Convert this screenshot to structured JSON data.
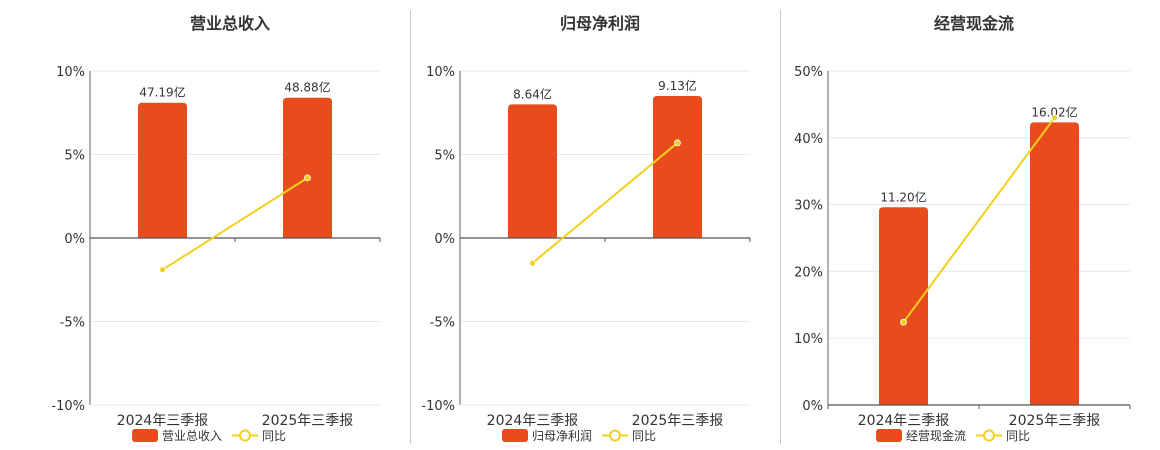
{
  "chart_data": [
    {
      "type": "bar",
      "title": "营业总收入",
      "categories": [
        "2024年三季报",
        "2025年三季报"
      ],
      "series": [
        {
          "name": "营业总收入",
          "type": "bar",
          "values": [
            8.1,
            8.4
          ],
          "labels": [
            "47.19亿",
            "48.88亿"
          ],
          "color": "#e84c1d"
        },
        {
          "name": "同比",
          "type": "line",
          "values": [
            -1.9,
            3.6
          ],
          "color": "#f2d01d"
        }
      ],
      "ylim": [
        -10,
        10
      ],
      "yticks": [
        "10%",
        "5%",
        "0%",
        "-5%",
        "-10%"
      ],
      "ytick_values": [
        10,
        5,
        0,
        -5,
        -10
      ],
      "xlabel": "",
      "ylabel": "",
      "legend": "bottom-center",
      "grid": true
    },
    {
      "type": "bar",
      "title": "归母净利润",
      "categories": [
        "2024年三季报",
        "2025年三季报"
      ],
      "series": [
        {
          "name": "归母净利润",
          "type": "bar",
          "values": [
            8.0,
            8.5
          ],
          "labels": [
            "8.64亿",
            "9.13亿"
          ],
          "color": "#e84c1d"
        },
        {
          "name": "同比",
          "type": "line",
          "values": [
            -1.5,
            5.7
          ],
          "color": "#f2d01d"
        }
      ],
      "ylim": [
        -10,
        10
      ],
      "yticks": [
        "10%",
        "5%",
        "0%",
        "-5%",
        "-10%"
      ],
      "ytick_values": [
        10,
        5,
        0,
        -5,
        -10
      ],
      "xlabel": "",
      "ylabel": "",
      "legend": "bottom-center",
      "grid": true
    },
    {
      "type": "bar",
      "title": "经营现金流",
      "categories": [
        "2024年三季报",
        "2025年三季报"
      ],
      "series": [
        {
          "name": "经营现金流",
          "type": "bar",
          "values": [
            29.6,
            42.3
          ],
          "labels": [
            "11.20亿",
            "16.02亿"
          ],
          "color": "#e84c1d"
        },
        {
          "name": "同比",
          "type": "line",
          "values": [
            12.4,
            43.0
          ],
          "color": "#f2d01d"
        }
      ],
      "ylim": [
        0,
        50
      ],
      "yticks": [
        "50%",
        "40%",
        "30%",
        "20%",
        "10%",
        "0%"
      ],
      "ytick_values": [
        50,
        40,
        30,
        20,
        10,
        0
      ],
      "xlabel": "",
      "ylabel": "",
      "legend": "bottom-center",
      "grid": true
    }
  ]
}
